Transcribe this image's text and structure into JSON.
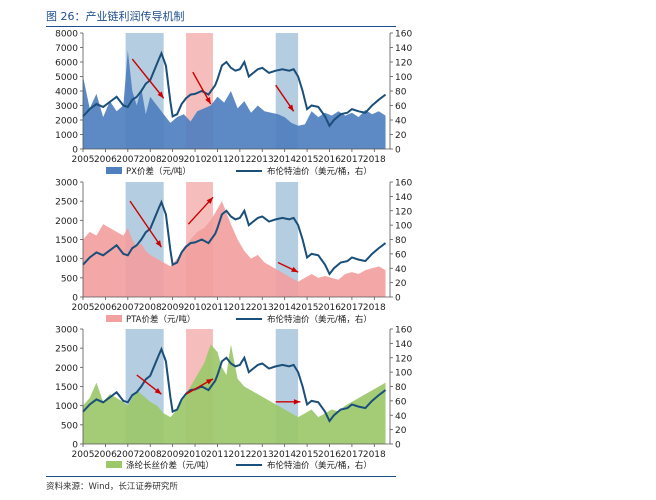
{
  "figure": {
    "title": "图 26：产业链利润传导机制",
    "source": "资料来源：Wind，长江证券研究所"
  },
  "colors": {
    "brent": "#1a4f7a",
    "shade_blue": "#a8c4dc",
    "shade_red": "#f3b3b1",
    "arrow": "#cc0000",
    "px_fill": "#4f7fbf",
    "pta_fill": "#f2a0a0",
    "polyester_fill": "#9cc86a"
  },
  "chart_data": [
    {
      "type": "area",
      "x_ticks": [
        "2005",
        "2006",
        "2007",
        "2008",
        "2009",
        "2010",
        "2011",
        "2012",
        "2013",
        "2014",
        "2015",
        "2016",
        "2017",
        "2018"
      ],
      "ylim_left": [
        0,
        8000
      ],
      "ylim_right": [
        0,
        160
      ],
      "yticks_left": [
        "0",
        "1000",
        "2000",
        "3000",
        "4000",
        "5000",
        "6000",
        "7000",
        "8000"
      ],
      "yticks_right": [
        "0",
        "20",
        "40",
        "60",
        "80",
        "100",
        "120",
        "140",
        "160"
      ],
      "series": [
        {
          "name": "PX价差（元/吨）",
          "axis": "left",
          "type": "area",
          "x": [
            2005.0,
            2005.3,
            2005.6,
            2005.9,
            2006.2,
            2006.5,
            2006.8,
            2007.0,
            2007.2,
            2007.4,
            2007.6,
            2007.8,
            2008.0,
            2008.3,
            2008.6,
            2008.9,
            2009.2,
            2009.5,
            2009.8,
            2010.1,
            2010.4,
            2010.7,
            2011.0,
            2011.3,
            2011.6,
            2011.9,
            2012.2,
            2012.5,
            2012.8,
            2013.1,
            2013.4,
            2013.7,
            2014.0,
            2014.3,
            2014.6,
            2014.9,
            2015.2,
            2015.5,
            2015.8,
            2016.1,
            2016.4,
            2016.7,
            2017.0,
            2017.3,
            2017.6,
            2017.9,
            2018.2,
            2018.5
          ],
          "values": [
            5000,
            2800,
            3800,
            2200,
            3300,
            2600,
            3000,
            6800,
            4000,
            3000,
            4200,
            2400,
            3600,
            3000,
            2400,
            1800,
            2200,
            2400,
            1900,
            2600,
            2800,
            3000,
            3600,
            3200,
            4000,
            2800,
            3300,
            2500,
            3000,
            2600,
            2500,
            2400,
            2200,
            1800,
            1600,
            1700,
            2600,
            2200,
            2500,
            2300,
            2600,
            2300,
            2500,
            2200,
            2700,
            2400,
            2600,
            2300
          ]
        },
        {
          "name": "布伦特油价（美元/桶，右）",
          "axis": "right",
          "type": "line",
          "x": [
            2005.0,
            2005.3,
            2005.6,
            2005.9,
            2006.2,
            2006.5,
            2006.8,
            2007.0,
            2007.2,
            2007.4,
            2007.6,
            2007.8,
            2008.0,
            2008.2,
            2008.4,
            2008.5,
            2008.7,
            2008.9,
            2009.0,
            2009.2,
            2009.4,
            2009.6,
            2009.8,
            2010.0,
            2010.3,
            2010.6,
            2010.9,
            2011.0,
            2011.2,
            2011.4,
            2011.6,
            2011.8,
            2012.0,
            2012.2,
            2012.4,
            2012.6,
            2012.8,
            2013.0,
            2013.3,
            2013.6,
            2013.9,
            2014.2,
            2014.4,
            2014.6,
            2014.8,
            2015.0,
            2015.2,
            2015.5,
            2015.8,
            2016.0,
            2016.2,
            2016.5,
            2016.8,
            2017.0,
            2017.3,
            2017.6,
            2017.9,
            2018.2,
            2018.5
          ],
          "values": [
            45,
            55,
            62,
            58,
            65,
            72,
            60,
            58,
            68,
            72,
            80,
            90,
            95,
            110,
            125,
            132,
            115,
            65,
            45,
            48,
            62,
            70,
            75,
            76,
            80,
            75,
            88,
            96,
            115,
            120,
            112,
            108,
            110,
            120,
            100,
            105,
            110,
            112,
            105,
            108,
            110,
            108,
            110,
            100,
            80,
            55,
            60,
            58,
            45,
            32,
            40,
            48,
            50,
            55,
            52,
            50,
            60,
            68,
            75
          ]
        }
      ],
      "shaded_periods": [
        {
          "from": 2006.9,
          "to": 2008.6,
          "color": "blue"
        },
        {
          "from": 2009.6,
          "to": 2010.8,
          "color": "red"
        },
        {
          "from": 2013.6,
          "to": 2014.6,
          "color": "blue"
        }
      ],
      "legend": [
        "PX价差（元/吨）",
        "布伦特油价（美元/桶，右）"
      ],
      "legend_placement": "bottom"
    },
    {
      "type": "area",
      "x_ticks": [
        "2005",
        "2006",
        "2007",
        "2008",
        "2009",
        "2010",
        "2011",
        "2012",
        "2013",
        "2014",
        "2015",
        "2016",
        "2017",
        "2018"
      ],
      "ylim_left": [
        0,
        3000
      ],
      "ylim_right": [
        0,
        160
      ],
      "yticks_left": [
        "0",
        "500",
        "1000",
        "1500",
        "2000",
        "2500",
        "3000"
      ],
      "yticks_right": [
        "0",
        "20",
        "40",
        "60",
        "80",
        "100",
        "120",
        "140",
        "160"
      ],
      "series": [
        {
          "name": "PTA价差（元/吨）",
          "axis": "left",
          "type": "area",
          "x": [
            2005.0,
            2005.3,
            2005.6,
            2005.9,
            2006.2,
            2006.5,
            2006.8,
            2007.0,
            2007.2,
            2007.4,
            2007.6,
            2007.8,
            2008.0,
            2008.3,
            2008.6,
            2008.9,
            2009.2,
            2009.5,
            2009.8,
            2010.1,
            2010.4,
            2010.7,
            2011.0,
            2011.2,
            2011.4,
            2011.6,
            2011.9,
            2012.2,
            2012.5,
            2012.8,
            2013.1,
            2013.4,
            2013.7,
            2014.0,
            2014.3,
            2014.6,
            2014.9,
            2015.2,
            2015.5,
            2015.8,
            2016.1,
            2016.4,
            2016.7,
            2017.0,
            2017.3,
            2017.6,
            2017.9,
            2018.2,
            2018.5
          ],
          "values": [
            1500,
            1700,
            1600,
            1900,
            1800,
            1700,
            1600,
            1800,
            1500,
            1300,
            1400,
            1200,
            1100,
            1000,
            900,
            800,
            1000,
            1300,
            1500,
            1700,
            1800,
            2000,
            2300,
            2500,
            2200,
            1900,
            1500,
            1200,
            1000,
            1100,
            900,
            800,
            700,
            600,
            500,
            400,
            500,
            600,
            500,
            550,
            500,
            450,
            600,
            650,
            600,
            700,
            750,
            800,
            700
          ]
        },
        {
          "name": "布伦特油价（美元/桶，右）",
          "axis": "right",
          "type": "line",
          "x": [
            2005.0,
            2005.3,
            2005.6,
            2005.9,
            2006.2,
            2006.5,
            2006.8,
            2007.0,
            2007.2,
            2007.4,
            2007.6,
            2007.8,
            2008.0,
            2008.2,
            2008.4,
            2008.5,
            2008.7,
            2008.9,
            2009.0,
            2009.2,
            2009.4,
            2009.6,
            2009.8,
            2010.0,
            2010.3,
            2010.6,
            2010.9,
            2011.0,
            2011.2,
            2011.4,
            2011.6,
            2011.8,
            2012.0,
            2012.2,
            2012.4,
            2012.6,
            2012.8,
            2013.0,
            2013.3,
            2013.6,
            2013.9,
            2014.2,
            2014.4,
            2014.6,
            2014.8,
            2015.0,
            2015.2,
            2015.5,
            2015.8,
            2016.0,
            2016.2,
            2016.5,
            2016.8,
            2017.0,
            2017.3,
            2017.6,
            2017.9,
            2018.2,
            2018.5
          ],
          "values": [
            45,
            55,
            62,
            58,
            65,
            72,
            60,
            58,
            68,
            72,
            80,
            90,
            95,
            110,
            125,
            132,
            115,
            65,
            45,
            48,
            62,
            70,
            75,
            76,
            80,
            75,
            88,
            96,
            115,
            120,
            112,
            108,
            110,
            120,
            100,
            105,
            110,
            112,
            105,
            108,
            110,
            108,
            110,
            100,
            80,
            55,
            60,
            58,
            45,
            32,
            40,
            48,
            50,
            55,
            52,
            50,
            60,
            68,
            75
          ]
        }
      ],
      "shaded_periods": [
        {
          "from": 2006.9,
          "to": 2008.6,
          "color": "blue"
        },
        {
          "from": 2009.6,
          "to": 2010.8,
          "color": "red"
        },
        {
          "from": 2013.6,
          "to": 2014.6,
          "color": "blue"
        }
      ],
      "legend": [
        "PTA价差（元/吨）",
        "布伦特油价（美元/桶，右）"
      ],
      "legend_placement": "bottom"
    },
    {
      "type": "area",
      "x_ticks": [
        "2005",
        "2006",
        "2007",
        "2008",
        "2009",
        "2010",
        "2011",
        "2012",
        "2013",
        "2014",
        "2015",
        "2016",
        "2017",
        "2018"
      ],
      "ylim_left": [
        0,
        3000
      ],
      "ylim_right": [
        0,
        160
      ],
      "yticks_left": [
        "0",
        "500",
        "1000",
        "1500",
        "2000",
        "2500",
        "3000"
      ],
      "yticks_right": [
        "0",
        "20",
        "40",
        "60",
        "80",
        "100",
        "120",
        "140",
        "160"
      ],
      "series": [
        {
          "name": "涤纶长丝价差（元/吨）",
          "axis": "left",
          "type": "area",
          "x": [
            2005.0,
            2005.3,
            2005.6,
            2005.9,
            2006.2,
            2006.5,
            2006.8,
            2007.0,
            2007.2,
            2007.4,
            2007.6,
            2007.8,
            2008.0,
            2008.3,
            2008.6,
            2008.9,
            2009.2,
            2009.5,
            2009.8,
            2010.1,
            2010.4,
            2010.7,
            2011.0,
            2011.2,
            2011.4,
            2011.6,
            2011.9,
            2012.2,
            2012.5,
            2012.8,
            2013.1,
            2013.4,
            2013.7,
            2014.0,
            2014.3,
            2014.6,
            2014.9,
            2015.2,
            2015.5,
            2015.8,
            2016.1,
            2016.4,
            2016.7,
            2017.0,
            2017.3,
            2017.6,
            2017.9,
            2018.2,
            2018.5
          ],
          "values": [
            1000,
            1200,
            1600,
            1100,
            1300,
            1200,
            1100,
            1000,
            1200,
            1400,
            1300,
            1200,
            1100,
            1000,
            800,
            700,
            900,
            1200,
            1500,
            1800,
            2100,
            2600,
            2400,
            2000,
            1800,
            2600,
            1700,
            1500,
            1400,
            1300,
            1200,
            1100,
            1000,
            900,
            800,
            700,
            800,
            900,
            700,
            800,
            900,
            850,
            1000,
            1100,
            1200,
            1300,
            1400,
            1500,
            1600
          ]
        },
        {
          "name": "布伦特油价（美元/桶，右）",
          "axis": "right",
          "type": "line",
          "x": [
            2005.0,
            2005.3,
            2005.6,
            2005.9,
            2006.2,
            2006.5,
            2006.8,
            2007.0,
            2007.2,
            2007.4,
            2007.6,
            2007.8,
            2008.0,
            2008.2,
            2008.4,
            2008.5,
            2008.7,
            2008.9,
            2009.0,
            2009.2,
            2009.4,
            2009.6,
            2009.8,
            2010.0,
            2010.3,
            2010.6,
            2010.9,
            2011.0,
            2011.2,
            2011.4,
            2011.6,
            2011.8,
            2012.0,
            2012.2,
            2012.4,
            2012.6,
            2012.8,
            2013.0,
            2013.3,
            2013.6,
            2013.9,
            2014.2,
            2014.4,
            2014.6,
            2014.8,
            2015.0,
            2015.2,
            2015.5,
            2015.8,
            2016.0,
            2016.2,
            2016.5,
            2016.8,
            2017.0,
            2017.3,
            2017.6,
            2017.9,
            2018.2,
            2018.5
          ],
          "values": [
            45,
            55,
            62,
            58,
            65,
            72,
            60,
            58,
            68,
            72,
            80,
            90,
            95,
            110,
            125,
            132,
            115,
            65,
            45,
            48,
            62,
            70,
            75,
            76,
            80,
            75,
            88,
            96,
            115,
            120,
            112,
            108,
            110,
            120,
            100,
            105,
            110,
            112,
            105,
            108,
            110,
            108,
            110,
            100,
            80,
            55,
            60,
            58,
            45,
            32,
            40,
            48,
            50,
            55,
            52,
            50,
            60,
            68,
            75
          ]
        }
      ],
      "shaded_periods": [
        {
          "from": 2006.9,
          "to": 2008.6,
          "color": "blue"
        },
        {
          "from": 2009.6,
          "to": 2010.8,
          "color": "red"
        },
        {
          "from": 2013.6,
          "to": 2014.6,
          "color": "blue"
        }
      ],
      "legend": [
        "涤纶长丝价差（元/吨）",
        "布伦特油价（美元/桶，右）"
      ],
      "legend_placement": "bottom"
    }
  ]
}
